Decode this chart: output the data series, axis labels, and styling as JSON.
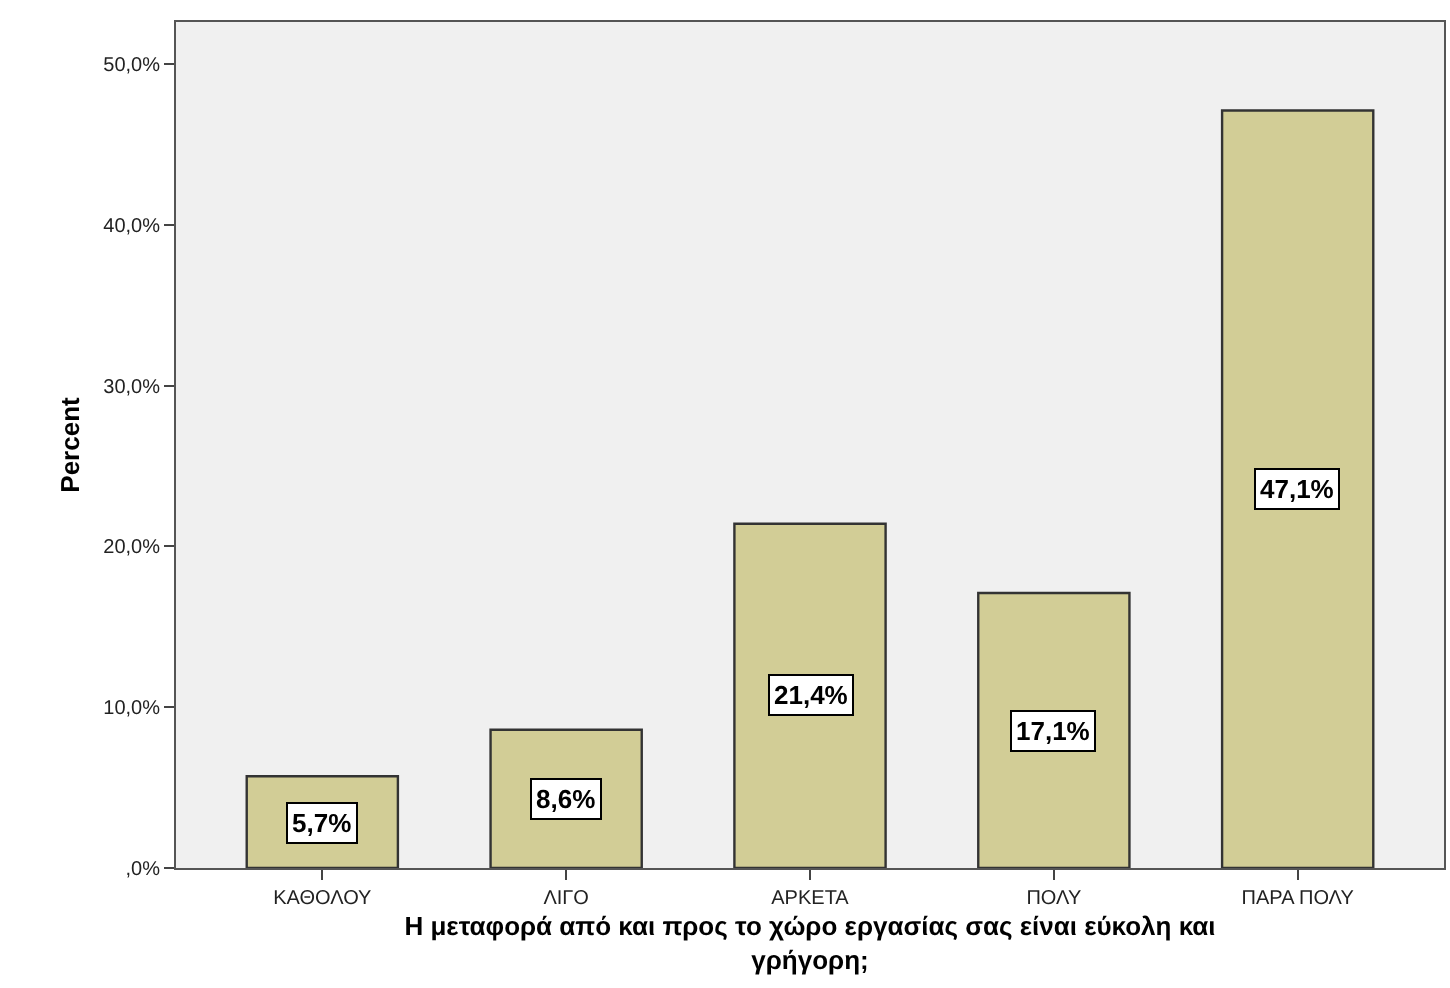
{
  "chart_data": {
    "type": "bar",
    "categories": [
      "ΚΑΘΟΛΟΥ",
      "ΛΙΓΟ",
      "ΑΡΚΕΤΑ",
      "ΠΟΛΥ",
      "ΠΑΡΑ ΠΟΛΥ"
    ],
    "values": [
      5.7,
      8.6,
      21.4,
      17.1,
      47.1
    ],
    "value_labels": [
      "5,7%",
      "8,6%",
      "21,4%",
      "17,1%",
      "47,1%"
    ],
    "color": "#d2cd96",
    "xlabel": "Η μεταφορά από και προς το χώρο εργασίας σας είναι εύκολη και γρήγορη;",
    "ylabel": "Percent",
    "ylim": [
      0,
      52.6
    ],
    "yticks": [
      {
        "value": 0,
        "label": ",0%"
      },
      {
        "value": 10,
        "label": "10,0%"
      },
      {
        "value": 20,
        "label": "20,0%"
      },
      {
        "value": 30,
        "label": "30,0%"
      },
      {
        "value": 40,
        "label": "40,0%"
      },
      {
        "value": 50,
        "label": "50,0%"
      }
    ],
    "grid": false,
    "legend": false
  }
}
